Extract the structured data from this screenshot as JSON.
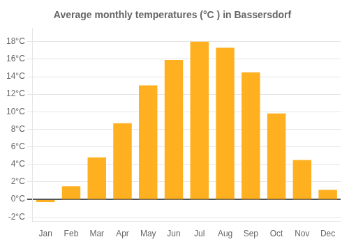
{
  "chart_data": {
    "type": "bar",
    "title": "Average monthly temperatures (°C ) in Bassersdorf",
    "categories": [
      "Jan",
      "Feb",
      "Mar",
      "Apr",
      "May",
      "Jun",
      "Jul",
      "Aug",
      "Sep",
      "Oct",
      "Nov",
      "Dec"
    ],
    "values": [
      -0.3,
      1.5,
      4.8,
      8.7,
      13.0,
      15.9,
      18.0,
      17.3,
      14.5,
      9.8,
      4.5,
      1.1
    ],
    "color": "#FFB020",
    "ylim": [
      -2.5,
      19.5
    ],
    "yticks": [
      {
        "value": -2,
        "label": "-2°C"
      },
      {
        "value": 0,
        "label": "0°C"
      },
      {
        "value": 2,
        "label": "2°C"
      },
      {
        "value": 4,
        "label": "4°C"
      },
      {
        "value": 6,
        "label": "6°C"
      },
      {
        "value": 8,
        "label": "8°C"
      },
      {
        "value": 10,
        "label": "10°C"
      },
      {
        "value": 12,
        "label": "12°C"
      },
      {
        "value": 14,
        "label": "14°C"
      },
      {
        "value": 16,
        "label": "16°C"
      },
      {
        "value": 18,
        "label": "18°C"
      }
    ],
    "grid": true
  }
}
